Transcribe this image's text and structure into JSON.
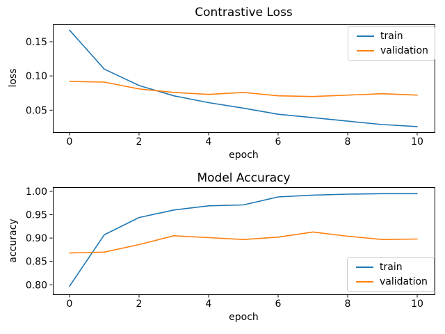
{
  "figure": {
    "background": "#ffffff",
    "text_color": "#000000",
    "train_color": "#1f77b4",
    "validation_color": "#ff7f0e"
  },
  "chart_data": [
    {
      "type": "line",
      "title": "Contrastive Loss",
      "xlabel": "epoch",
      "ylabel": "loss",
      "grid": false,
      "legend_position": "upper right",
      "x": [
        0,
        1,
        2,
        3,
        4,
        5,
        6,
        7,
        8,
        9,
        10
      ],
      "series": [
        {
          "name": "train",
          "color": "#1f77b4",
          "values": [
            0.167,
            0.11,
            0.086,
            0.071,
            0.061,
            0.053,
            0.044,
            0.039,
            0.034,
            0.029,
            0.026
          ]
        },
        {
          "name": "validation",
          "color": "#ff7f0e",
          "values": [
            0.092,
            0.091,
            0.081,
            0.076,
            0.073,
            0.076,
            0.071,
            0.07,
            0.072,
            0.074,
            0.072
          ]
        }
      ],
      "xlim": [
        -0.48,
        10.5
      ],
      "ylim": [
        0.0178,
        0.1754
      ],
      "xticks": [
        0,
        2,
        4,
        6,
        8,
        10
      ],
      "xtick_labels": [
        "0",
        "2",
        "4",
        "6",
        "8",
        "10"
      ],
      "yticks": [
        0.05,
        0.1,
        0.15
      ],
      "ytick_labels": [
        "0.05",
        "0.10",
        "0.15"
      ]
    },
    {
      "type": "line",
      "title": "Model Accuracy",
      "xlabel": "epoch",
      "ylabel": "accuracy",
      "grid": false,
      "legend_position": "lower right",
      "x": [
        0,
        1,
        2,
        3,
        4,
        5,
        6,
        7,
        8,
        9,
        10
      ],
      "series": [
        {
          "name": "train",
          "color": "#1f77b4",
          "values": [
            0.797,
            0.907,
            0.944,
            0.96,
            0.969,
            0.971,
            0.988,
            0.992,
            0.994,
            0.995,
            0.995
          ]
        },
        {
          "name": "validation",
          "color": "#ff7f0e",
          "values": [
            0.868,
            0.87,
            0.886,
            0.905,
            0.901,
            0.897,
            0.902,
            0.913,
            0.904,
            0.897,
            0.898
          ]
        }
      ],
      "xlim": [
        -0.48,
        10.5
      ],
      "ylim": [
        0.7796,
        1.0089
      ],
      "xticks": [
        0,
        2,
        4,
        6,
        8,
        10
      ],
      "xtick_labels": [
        "0",
        "2",
        "4",
        "6",
        "8",
        "10"
      ],
      "yticks": [
        0.8,
        0.85,
        0.9,
        0.95,
        1.0
      ],
      "ytick_labels": [
        "0.80",
        "0.85",
        "0.90",
        "0.95",
        "1.00"
      ]
    }
  ]
}
